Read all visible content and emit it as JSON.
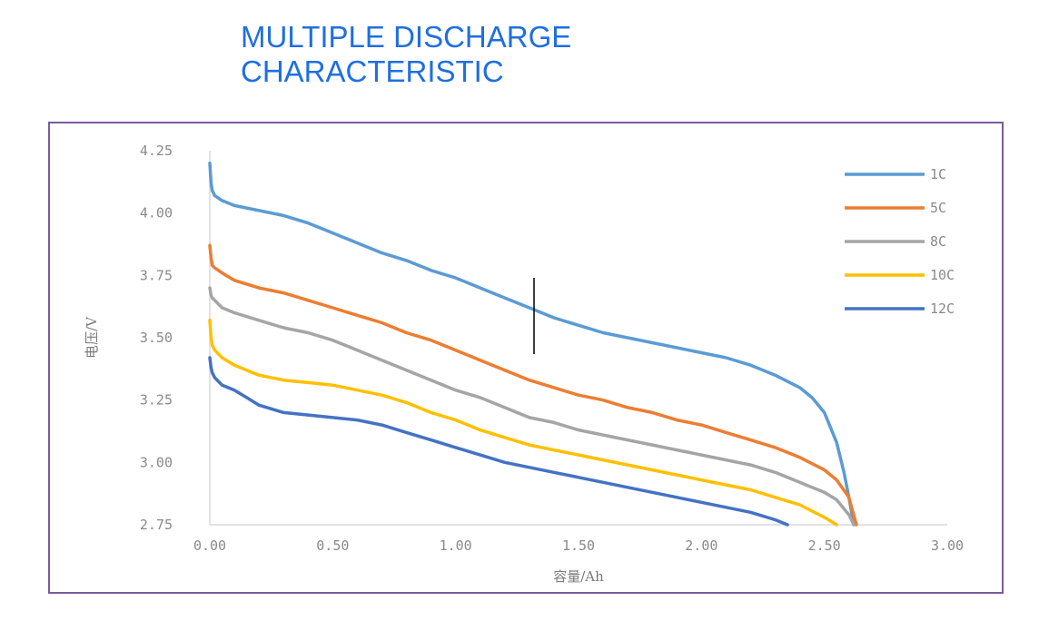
{
  "title": {
    "line1": "MULTIPLE DISCHARGE",
    "line2": "CHARACTERISTIC"
  },
  "chart_data": {
    "type": "line",
    "xlabel": "容量/Ah",
    "ylabel": "电压/V",
    "xlim": [
      0,
      3
    ],
    "ylim": [
      2.75,
      4.25
    ],
    "x_ticks": [
      "0.00",
      "0.50",
      "1.00",
      "1.50",
      "2.00",
      "2.50",
      "3.00"
    ],
    "y_ticks": [
      "2.75",
      "3.00",
      "3.25",
      "3.50",
      "3.75",
      "4.00",
      "4.25"
    ],
    "grid": false,
    "legend_position": "top-right",
    "series": [
      {
        "name": "1C",
        "color": "#5b9bd5",
        "x": [
          0.0,
          0.005,
          0.01,
          0.02,
          0.05,
          0.1,
          0.2,
          0.3,
          0.4,
          0.5,
          0.6,
          0.7,
          0.8,
          0.9,
          1.0,
          1.1,
          1.2,
          1.3,
          1.4,
          1.5,
          1.6,
          1.7,
          1.8,
          1.9,
          2.0,
          2.1,
          2.2,
          2.3,
          2.4,
          2.45,
          2.5,
          2.55,
          2.58,
          2.6,
          2.62
        ],
        "y": [
          4.2,
          4.12,
          4.09,
          4.07,
          4.05,
          4.03,
          4.01,
          3.99,
          3.96,
          3.92,
          3.88,
          3.84,
          3.81,
          3.77,
          3.74,
          3.7,
          3.66,
          3.62,
          3.58,
          3.55,
          3.52,
          3.5,
          3.48,
          3.46,
          3.44,
          3.42,
          3.39,
          3.35,
          3.3,
          3.26,
          3.2,
          3.08,
          2.96,
          2.86,
          2.75
        ]
      },
      {
        "name": "5C",
        "color": "#ed7d31",
        "x": [
          0.0,
          0.005,
          0.01,
          0.02,
          0.05,
          0.1,
          0.2,
          0.3,
          0.4,
          0.5,
          0.6,
          0.7,
          0.8,
          0.9,
          1.0,
          1.1,
          1.2,
          1.3,
          1.4,
          1.5,
          1.6,
          1.7,
          1.8,
          1.9,
          2.0,
          2.1,
          2.2,
          2.3,
          2.4,
          2.5,
          2.55,
          2.6,
          2.63
        ],
        "y": [
          3.87,
          3.82,
          3.79,
          3.78,
          3.76,
          3.73,
          3.7,
          3.68,
          3.65,
          3.62,
          3.59,
          3.56,
          3.52,
          3.49,
          3.45,
          3.41,
          3.37,
          3.33,
          3.3,
          3.27,
          3.25,
          3.22,
          3.2,
          3.17,
          3.15,
          3.12,
          3.09,
          3.06,
          3.02,
          2.97,
          2.93,
          2.86,
          2.75
        ]
      },
      {
        "name": "8C",
        "color": "#a5a5a5",
        "x": [
          0.0,
          0.005,
          0.01,
          0.02,
          0.05,
          0.1,
          0.2,
          0.3,
          0.4,
          0.5,
          0.6,
          0.7,
          0.8,
          0.9,
          1.0,
          1.1,
          1.2,
          1.3,
          1.4,
          1.5,
          1.6,
          1.7,
          1.8,
          1.9,
          2.0,
          2.1,
          2.2,
          2.3,
          2.4,
          2.5,
          2.55,
          2.6,
          2.62
        ],
        "y": [
          3.7,
          3.67,
          3.66,
          3.65,
          3.62,
          3.6,
          3.57,
          3.54,
          3.52,
          3.49,
          3.45,
          3.41,
          3.37,
          3.33,
          3.29,
          3.26,
          3.22,
          3.18,
          3.16,
          3.13,
          3.11,
          3.09,
          3.07,
          3.05,
          3.03,
          3.01,
          2.99,
          2.96,
          2.92,
          2.88,
          2.85,
          2.79,
          2.75
        ]
      },
      {
        "name": "10C",
        "color": "#ffc000",
        "x": [
          0.0,
          0.005,
          0.01,
          0.02,
          0.05,
          0.1,
          0.2,
          0.3,
          0.4,
          0.5,
          0.6,
          0.7,
          0.8,
          0.9,
          1.0,
          1.1,
          1.2,
          1.3,
          1.4,
          1.5,
          1.6,
          1.7,
          1.8,
          1.9,
          2.0,
          2.1,
          2.2,
          2.3,
          2.4,
          2.5,
          2.55
        ],
        "y": [
          3.57,
          3.5,
          3.47,
          3.45,
          3.42,
          3.39,
          3.35,
          3.33,
          3.32,
          3.31,
          3.29,
          3.27,
          3.24,
          3.2,
          3.17,
          3.13,
          3.1,
          3.07,
          3.05,
          3.03,
          3.01,
          2.99,
          2.97,
          2.95,
          2.93,
          2.91,
          2.89,
          2.86,
          2.83,
          2.78,
          2.75
        ]
      },
      {
        "name": "12C",
        "color": "#4472c4",
        "x": [
          0.0,
          0.005,
          0.01,
          0.02,
          0.05,
          0.1,
          0.15,
          0.2,
          0.3,
          0.4,
          0.5,
          0.6,
          0.7,
          0.8,
          0.9,
          1.0,
          1.1,
          1.2,
          1.3,
          1.4,
          1.5,
          1.6,
          1.7,
          1.8,
          1.9,
          2.0,
          2.1,
          2.2,
          2.3,
          2.35
        ],
        "y": [
          3.42,
          3.38,
          3.36,
          3.34,
          3.31,
          3.29,
          3.26,
          3.23,
          3.2,
          3.19,
          3.18,
          3.17,
          3.15,
          3.12,
          3.09,
          3.06,
          3.03,
          3.0,
          2.98,
          2.96,
          2.94,
          2.92,
          2.9,
          2.88,
          2.86,
          2.84,
          2.82,
          2.8,
          2.77,
          2.75
        ]
      }
    ]
  }
}
